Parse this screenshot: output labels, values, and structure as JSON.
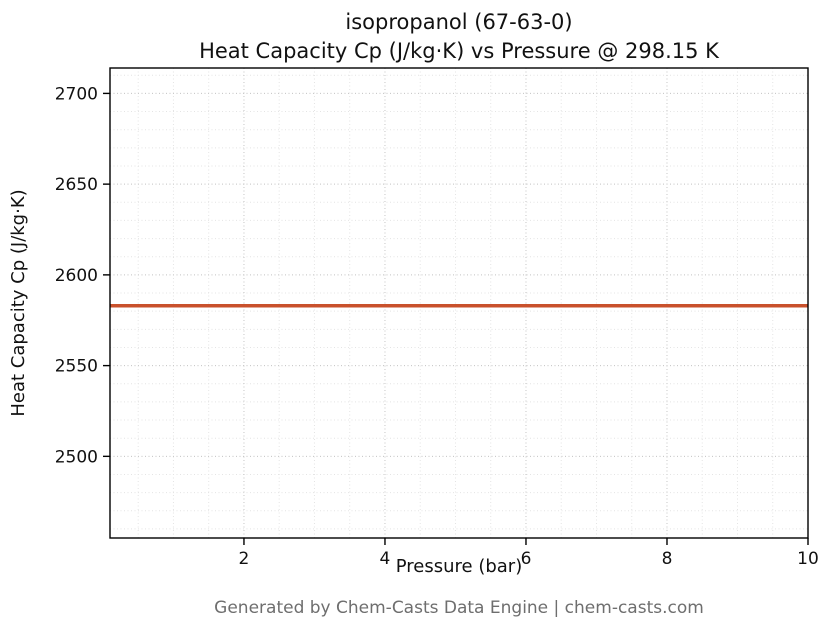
{
  "chart_data": {
    "type": "line",
    "title_line1": "isopropanol (67-63-0)",
    "title_line2": "Heat Capacity Cp (J/kg·K) vs Pressure @ 298.15 K",
    "xlabel": "Pressure (bar)",
    "ylabel": "Heat Capacity Cp (J/kg·K)",
    "series": [
      {
        "name": "Heat Capacity Cp",
        "color": "#c9512c",
        "x": [
          0.1,
          10
        ],
        "values": [
          2583,
          2583
        ]
      }
    ],
    "constant_cp_value": 2583,
    "xlim": [
      0.1,
      10
    ],
    "ylim": [
      2455,
      2714
    ],
    "x_ticks": [
      2,
      4,
      6,
      8,
      10
    ],
    "y_ticks": [
      2500,
      2550,
      2600,
      2650,
      2700
    ],
    "x_minor_step": 0.5,
    "y_minor_step": 10,
    "grid": "major+minor dotted",
    "legend_position": "none"
  },
  "footer": {
    "text": "Generated by Chem-Casts Data Engine | chem-casts.com"
  },
  "colors": {
    "line": "#c9512c",
    "grid_major": "#c6c6c6",
    "grid_minor": "#e4e4e4",
    "axis": "#000000",
    "tick_label": "#111111",
    "footer_text": "#6e6e6e",
    "background": "#ffffff"
  }
}
